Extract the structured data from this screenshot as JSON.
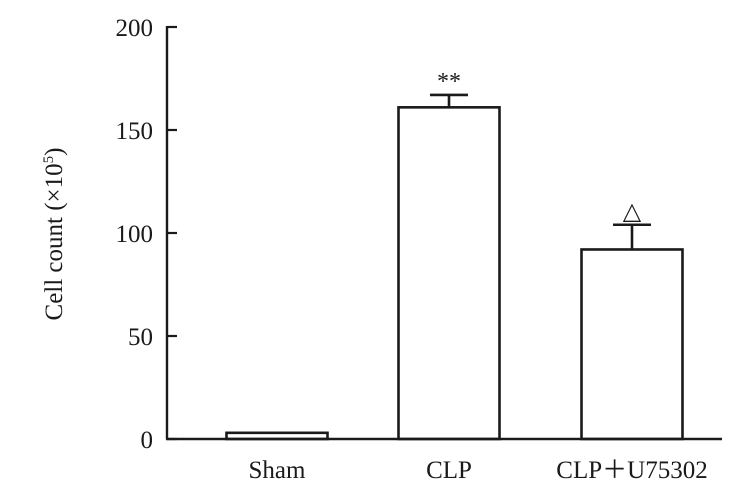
{
  "chart_data": {
    "type": "bar",
    "categories": [
      "Sham",
      "CLP",
      "CLP＋U75302"
    ],
    "values": [
      3,
      161,
      92
    ],
    "errors": [
      0,
      6,
      12
    ],
    "annotations": [
      "",
      "**",
      "△"
    ],
    "ylabel": "Cell count (×10",
    "ylabel_sup": "5",
    "ylabel_close": ")",
    "ylim": [
      0,
      200
    ],
    "yticks": [
      0,
      50,
      100,
      150,
      200
    ],
    "grid": false,
    "colors": {
      "bar_fill": "#ffffff",
      "stroke": "#1a1a1a"
    }
  }
}
